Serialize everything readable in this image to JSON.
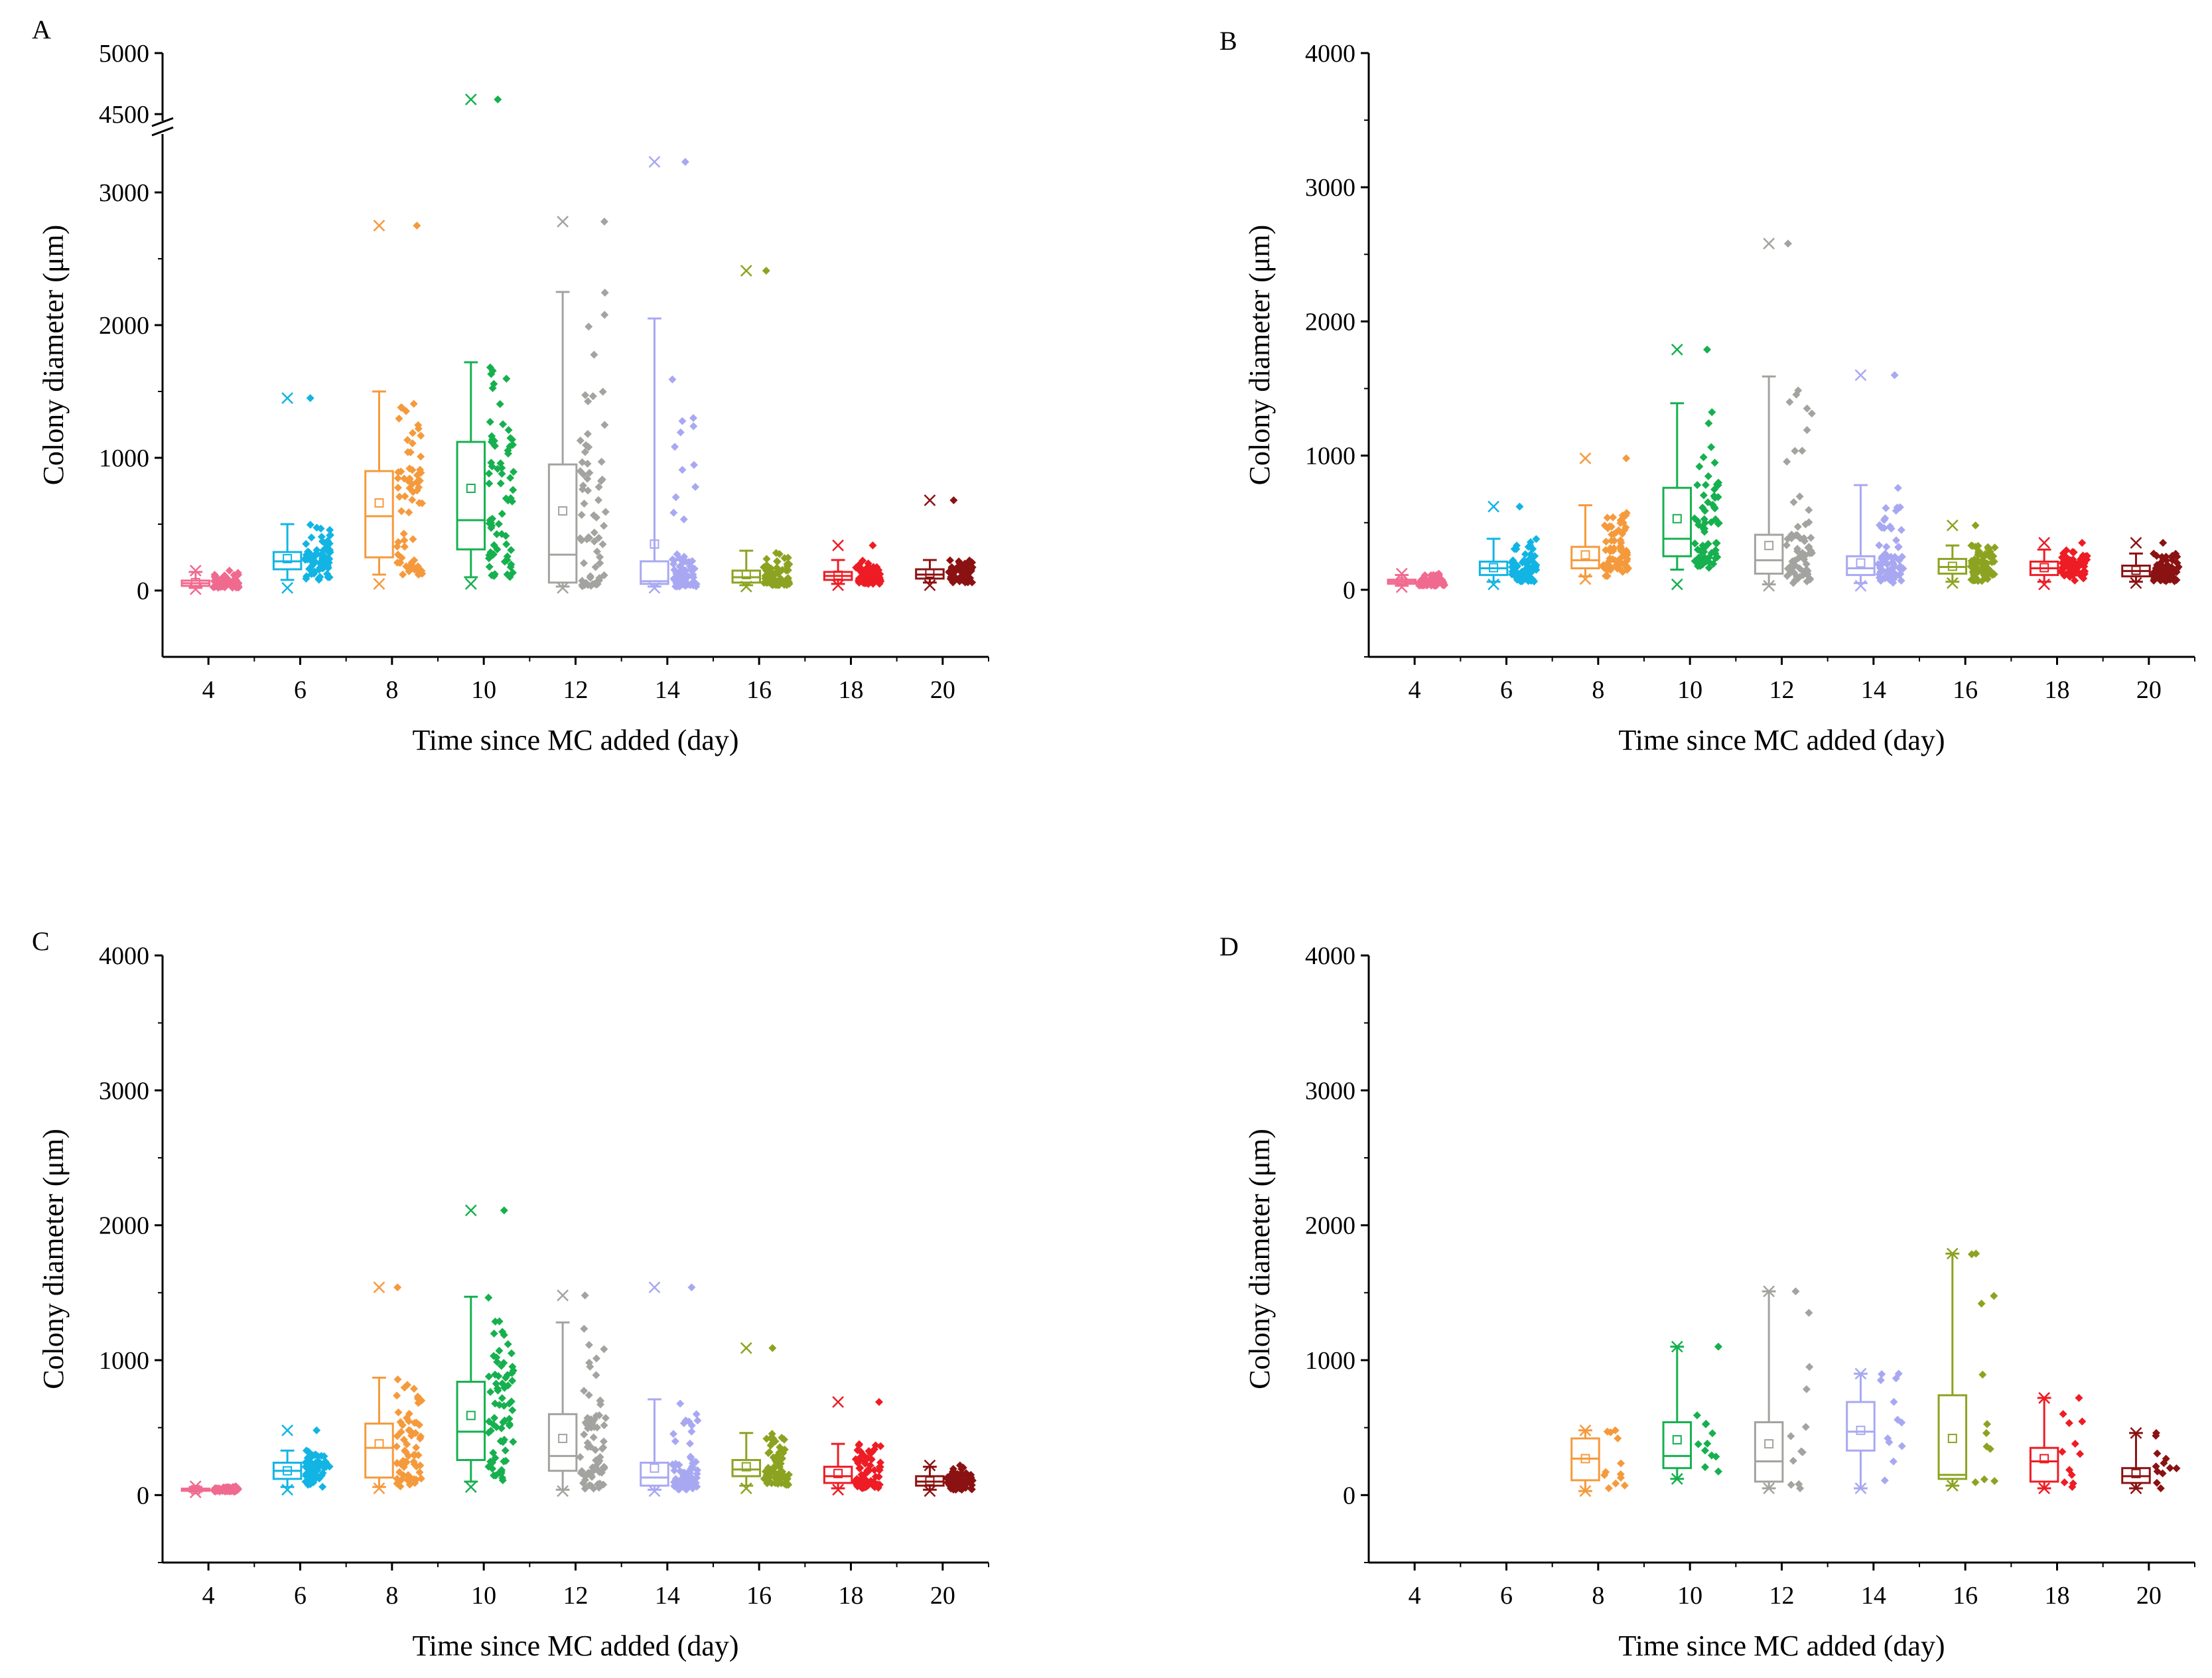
{
  "colors": [
    "#f06a8f",
    "#12b4e4",
    "#f59a3c",
    "#16b04f",
    "#a3a39f",
    "#a8a8f2",
    "#8ca321",
    "#ee1c24",
    "#8b1212"
  ],
  "chart_data": [
    {
      "panel": "A",
      "type": "box",
      "xlabel": "Time since MC added (day)",
      "ylabel": "Colony diameter (μm)",
      "categories": [
        "4",
        "6",
        "8",
        "10",
        "12",
        "14",
        "16",
        "18",
        "20"
      ],
      "yticks": [
        "0",
        "1000",
        "2000",
        "3000",
        "4500",
        "5000"
      ],
      "ylim": [
        -500,
        5000
      ],
      "axis_break": [
        3300,
        4400
      ],
      "boxes": [
        {
          "day": "4",
          "whisker_low": 20,
          "q1": 35,
          "median": 55,
          "q3": 75,
          "whisker_high": 140,
          "mean": 60,
          "max": 150,
          "min": 10
        },
        {
          "day": "6",
          "whisker_low": 80,
          "q1": 160,
          "median": 220,
          "q3": 290,
          "whisker_high": 500,
          "mean": 240,
          "max": 1450,
          "min": 20
        },
        {
          "day": "8",
          "whisker_low": 120,
          "q1": 250,
          "median": 560,
          "q3": 900,
          "whisker_high": 1500,
          "mean": 660,
          "max": 2750,
          "min": 50
        },
        {
          "day": "10",
          "whisker_low": 100,
          "q1": 310,
          "median": 530,
          "q3": 1120,
          "whisker_high": 1720,
          "mean": 770,
          "max": 4620,
          "min": 50
        },
        {
          "day": "12",
          "whisker_low": 30,
          "q1": 60,
          "median": 270,
          "q3": 950,
          "whisker_high": 2250,
          "mean": 600,
          "max": 2780,
          "min": 20
        },
        {
          "day": "14",
          "whisker_low": 30,
          "q1": 50,
          "median": 70,
          "q3": 220,
          "whisker_high": 2050,
          "mean": 350,
          "max": 3230,
          "min": 20
        },
        {
          "day": "16",
          "whisker_low": 40,
          "q1": 60,
          "median": 100,
          "q3": 150,
          "whisker_high": 300,
          "mean": 120,
          "max": 2410,
          "min": 30
        },
        {
          "day": "18",
          "whisker_low": 50,
          "q1": 80,
          "median": 110,
          "q3": 140,
          "whisker_high": 230,
          "mean": 115,
          "max": 340,
          "min": 40
        },
        {
          "day": "20",
          "whisker_low": 60,
          "q1": 90,
          "median": 120,
          "q3": 160,
          "whisker_high": 230,
          "mean": 130,
          "max": 680,
          "min": 40
        }
      ]
    },
    {
      "panel": "B",
      "type": "box",
      "xlabel": "Time since MC added (day)",
      "ylabel": "Colony diameter (μm)",
      "categories": [
        "4",
        "6",
        "8",
        "10",
        "12",
        "14",
        "16",
        "18",
        "20"
      ],
      "yticks": [
        "0",
        "1000",
        "2000",
        "3000",
        "4000"
      ],
      "ylim": [
        -500,
        4000
      ],
      "boxes": [
        {
          "day": "4",
          "whisker_low": 30,
          "q1": 45,
          "median": 60,
          "q3": 75,
          "whisker_high": 110,
          "mean": 60,
          "max": 120,
          "min": 20
        },
        {
          "day": "6",
          "whisker_low": 60,
          "q1": 110,
          "median": 160,
          "q3": 210,
          "whisker_high": 380,
          "mean": 165,
          "max": 620,
          "min": 40
        },
        {
          "day": "8",
          "whisker_low": 100,
          "q1": 160,
          "median": 220,
          "q3": 320,
          "whisker_high": 630,
          "mean": 260,
          "max": 980,
          "min": 80
        },
        {
          "day": "10",
          "whisker_low": 150,
          "q1": 250,
          "median": 380,
          "q3": 760,
          "whisker_high": 1390,
          "mean": 530,
          "max": 1790,
          "min": 40
        },
        {
          "day": "12",
          "whisker_low": 40,
          "q1": 120,
          "median": 220,
          "q3": 410,
          "whisker_high": 1590,
          "mean": 330,
          "max": 2580,
          "min": 30
        },
        {
          "day": "14",
          "whisker_low": 50,
          "q1": 110,
          "median": 160,
          "q3": 250,
          "whisker_high": 780,
          "mean": 200,
          "max": 1600,
          "min": 30
        },
        {
          "day": "16",
          "whisker_low": 60,
          "q1": 120,
          "median": 170,
          "q3": 230,
          "whisker_high": 330,
          "mean": 175,
          "max": 480,
          "min": 50
        },
        {
          "day": "18",
          "whisker_low": 60,
          "q1": 110,
          "median": 160,
          "q3": 210,
          "whisker_high": 300,
          "mean": 165,
          "max": 350,
          "min": 40
        },
        {
          "day": "20",
          "whisker_low": 60,
          "q1": 100,
          "median": 140,
          "q3": 180,
          "whisker_high": 270,
          "mean": 145,
          "max": 350,
          "min": 50
        }
      ]
    },
    {
      "panel": "C",
      "type": "box",
      "xlabel": "Time since MC added (day)",
      "ylabel": "Colony diameter (μm)",
      "categories": [
        "4",
        "6",
        "8",
        "10",
        "12",
        "14",
        "16",
        "18",
        "20"
      ],
      "yticks": [
        "0",
        "1000",
        "2000",
        "3000",
        "4000"
      ],
      "ylim": [
        -500,
        4000
      ],
      "boxes": [
        {
          "day": "4",
          "whisker_low": 25,
          "q1": 32,
          "median": 40,
          "q3": 48,
          "whisker_high": 60,
          "mean": 40,
          "max": 65,
          "min": 20
        },
        {
          "day": "6",
          "whisker_low": 60,
          "q1": 120,
          "median": 180,
          "q3": 240,
          "whisker_high": 330,
          "mean": 180,
          "max": 480,
          "min": 40
        },
        {
          "day": "8",
          "whisker_low": 60,
          "q1": 130,
          "median": 350,
          "q3": 530,
          "whisker_high": 870,
          "mean": 380,
          "max": 1540,
          "min": 50
        },
        {
          "day": "10",
          "whisker_low": 100,
          "q1": 260,
          "median": 470,
          "q3": 840,
          "whisker_high": 1470,
          "mean": 590,
          "max": 2110,
          "min": 60
        },
        {
          "day": "12",
          "whisker_low": 40,
          "q1": 180,
          "median": 290,
          "q3": 600,
          "whisker_high": 1280,
          "mean": 420,
          "max": 1480,
          "min": 30
        },
        {
          "day": "14",
          "whisker_low": 40,
          "q1": 70,
          "median": 130,
          "q3": 240,
          "whisker_high": 710,
          "mean": 200,
          "max": 1540,
          "min": 30
        },
        {
          "day": "16",
          "whisker_low": 70,
          "q1": 140,
          "median": 190,
          "q3": 260,
          "whisker_high": 460,
          "mean": 210,
          "max": 1090,
          "min": 50
        },
        {
          "day": "18",
          "whisker_low": 50,
          "q1": 90,
          "median": 140,
          "q3": 210,
          "whisker_high": 380,
          "mean": 160,
          "max": 690,
          "min": 40
        },
        {
          "day": "20",
          "whisker_low": 40,
          "q1": 70,
          "median": 100,
          "q3": 140,
          "whisker_high": 210,
          "mean": 105,
          "max": 220,
          "min": 30
        }
      ]
    },
    {
      "panel": "D",
      "type": "box",
      "xlabel": "Time since MC added (day)",
      "ylabel": "Colony diameter (μm)",
      "categories": [
        "4",
        "6",
        "8",
        "10",
        "12",
        "14",
        "16",
        "18",
        "20"
      ],
      "yticks": [
        "0",
        "1000",
        "2000",
        "3000",
        "4000"
      ],
      "ylim": [
        -500,
        4000
      ],
      "boxes": [
        {
          "day": "8",
          "whisker_low": 30,
          "q1": 110,
          "median": 270,
          "q3": 420,
          "whisker_high": 480,
          "mean": 270,
          "max": 480,
          "min": 30
        },
        {
          "day": "10",
          "whisker_low": 120,
          "q1": 200,
          "median": 290,
          "q3": 540,
          "whisker_high": 1100,
          "mean": 410,
          "max": 1100,
          "min": 120
        },
        {
          "day": "12",
          "whisker_low": 50,
          "q1": 100,
          "median": 250,
          "q3": 540,
          "whisker_high": 1510,
          "mean": 380,
          "max": 1510,
          "min": 50
        },
        {
          "day": "14",
          "whisker_low": 50,
          "q1": 330,
          "median": 470,
          "q3": 690,
          "whisker_high": 900,
          "mean": 480,
          "max": 900,
          "min": 50
        },
        {
          "day": "16",
          "whisker_low": 70,
          "q1": 120,
          "median": 150,
          "q3": 740,
          "whisker_high": 1790,
          "mean": 420,
          "max": 1790,
          "min": 70
        },
        {
          "day": "18",
          "whisker_low": 50,
          "q1": 100,
          "median": 250,
          "q3": 350,
          "whisker_high": 720,
          "mean": 270,
          "max": 720,
          "min": 50
        },
        {
          "day": "20",
          "whisker_low": 50,
          "q1": 90,
          "median": 140,
          "q3": 200,
          "whisker_high": 460,
          "mean": 160,
          "max": 460,
          "min": 50
        }
      ]
    }
  ]
}
